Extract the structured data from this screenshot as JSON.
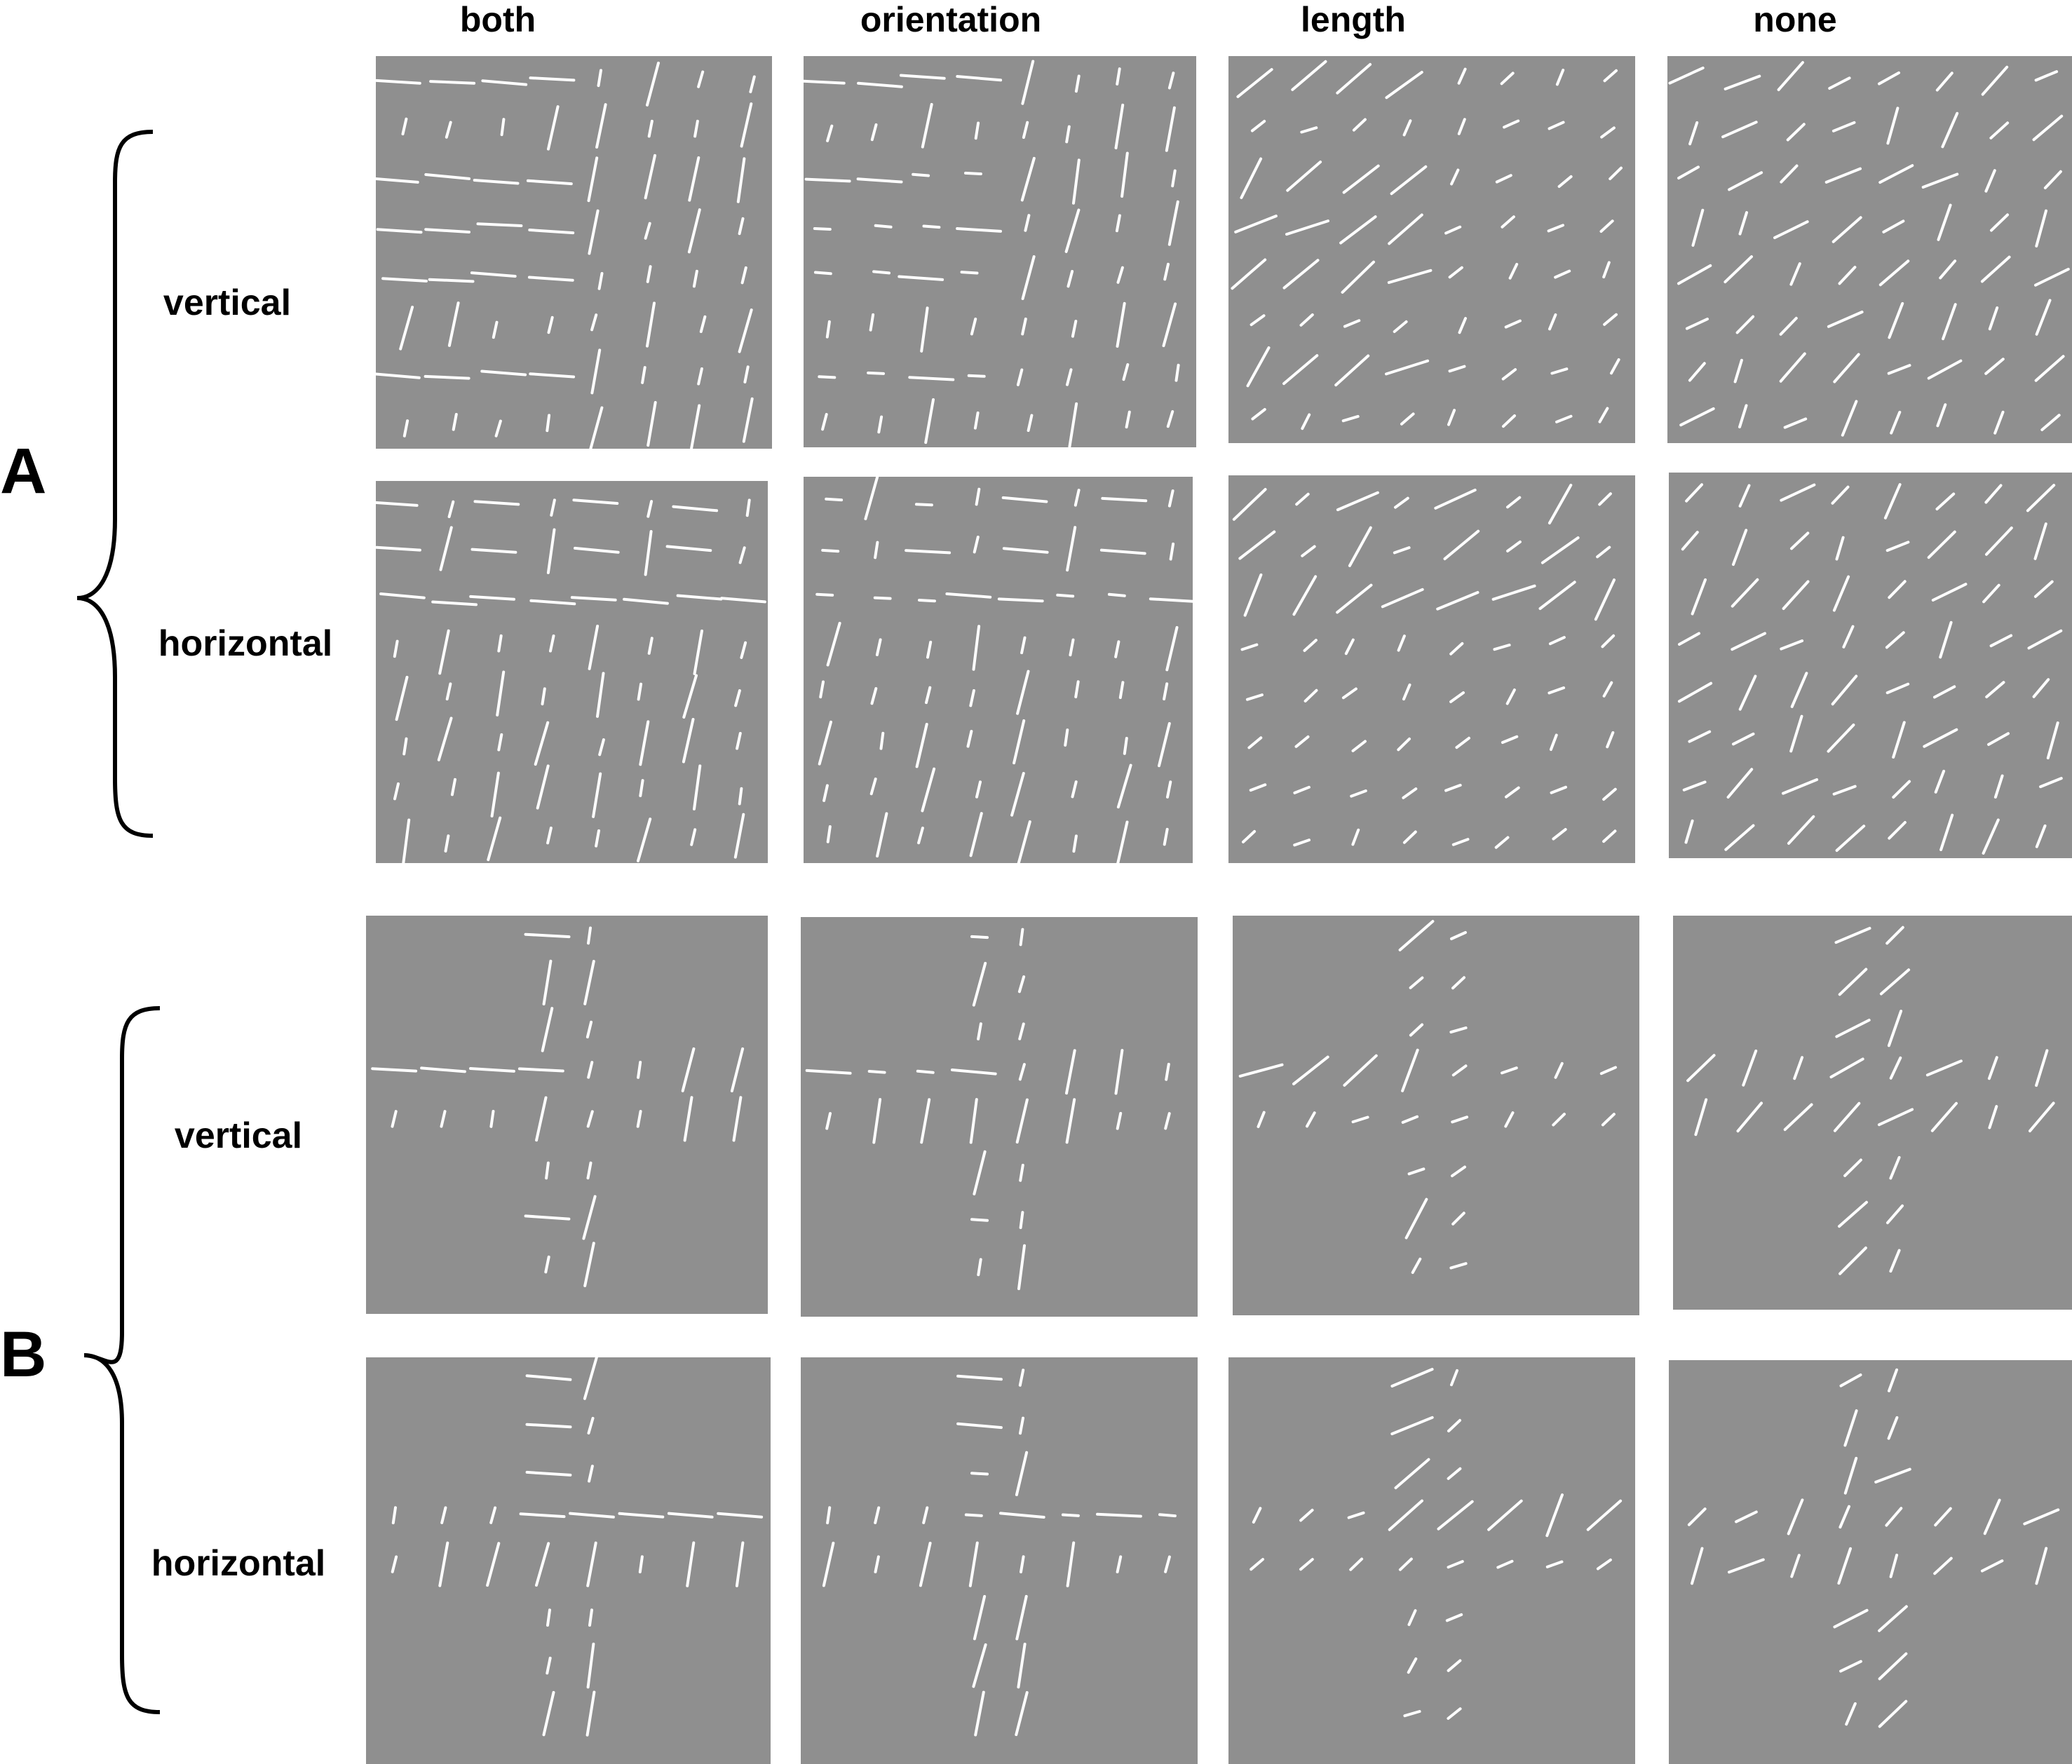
{
  "columns": [
    "both",
    "orientation",
    "length",
    "none"
  ],
  "sections": [
    {
      "label": "A",
      "rows": [
        "vertical",
        "horizontal"
      ],
      "layout": "texture"
    },
    {
      "label": "B",
      "rows": [
        "vertical",
        "horizontal"
      ],
      "layout": "cross"
    }
  ],
  "colors": {
    "panel_background": "#8f8f8f",
    "segment": "#ffffff",
    "page_background": "#ffffff"
  }
}
